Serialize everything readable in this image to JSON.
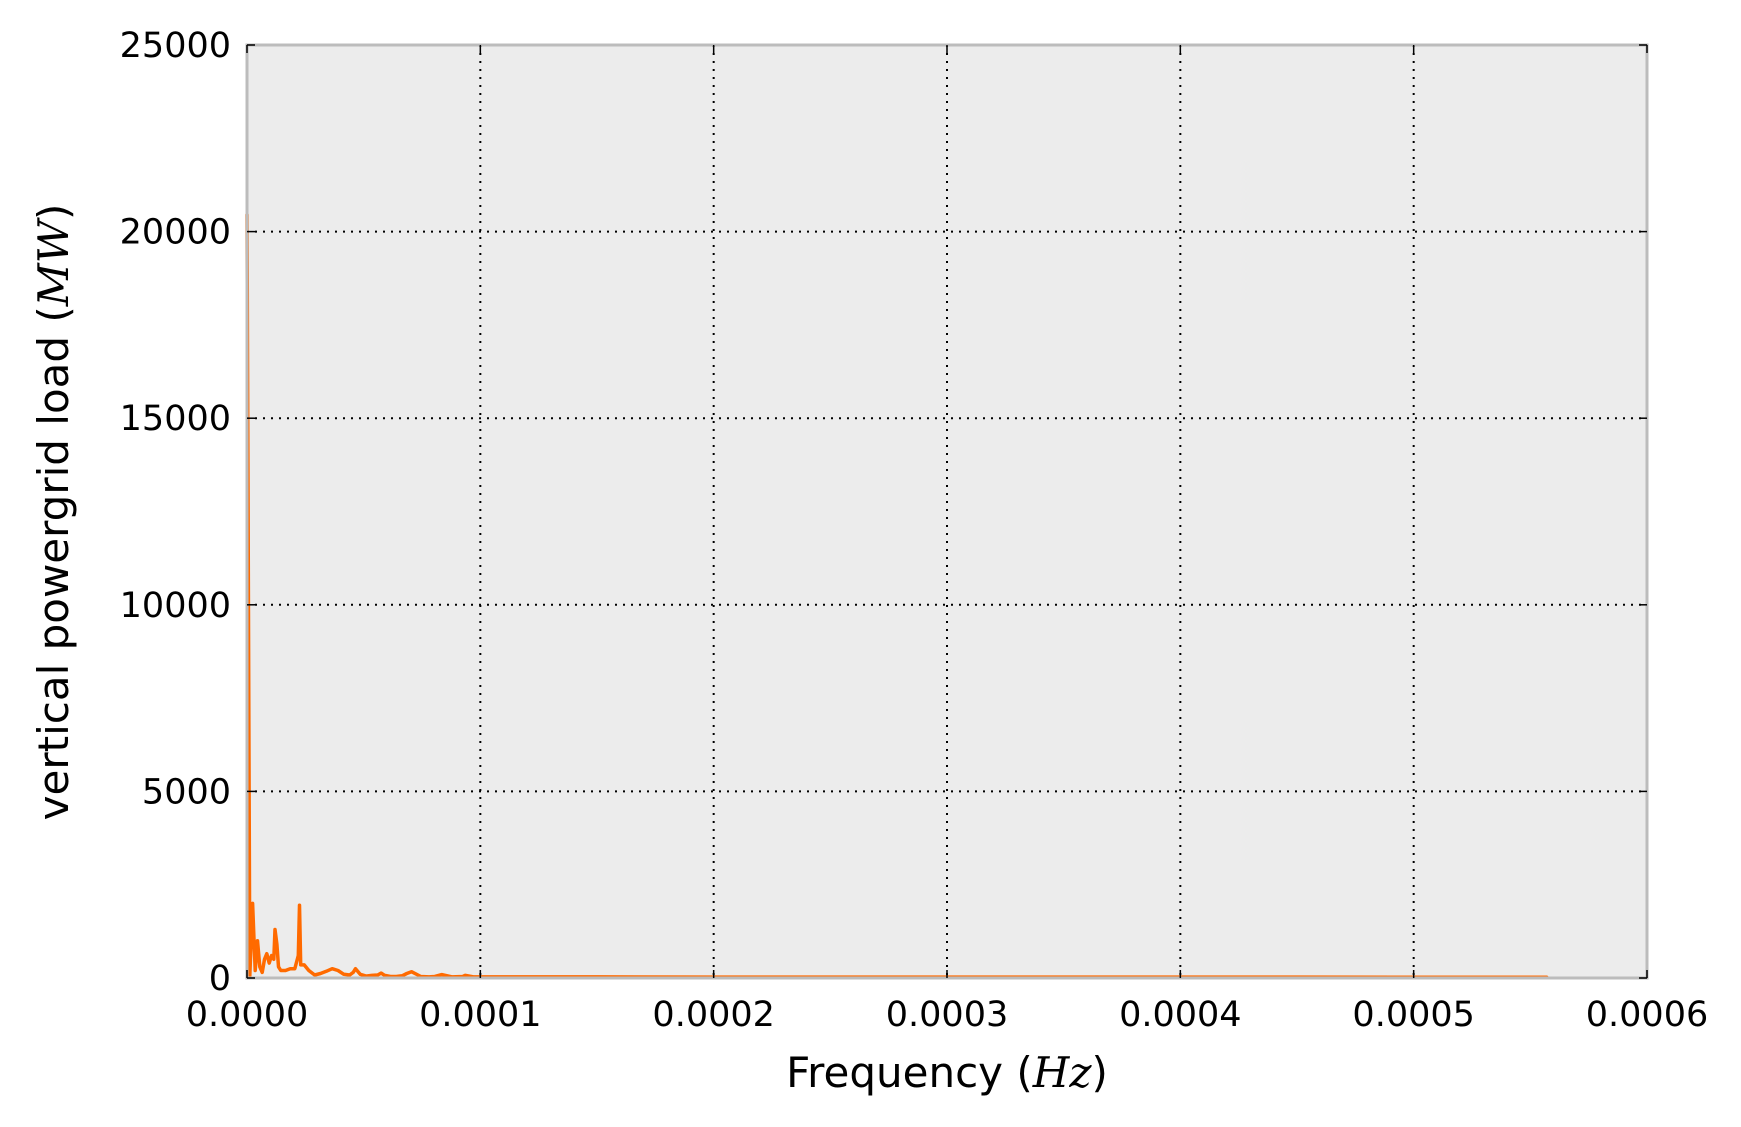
{
  "chart_data": {
    "type": "line",
    "title": "",
    "xlabel": {
      "prefix": "Frequency (",
      "unit": "Hz",
      "suffix": ")"
    },
    "ylabel": {
      "prefix": "vertical powergrid load (",
      "unit": "MW",
      "suffix": ")"
    },
    "xlim": [
      0,
      0.0006
    ],
    "ylim": [
      0,
      25000
    ],
    "xticks": [
      0,
      0.0001,
      0.0002,
      0.0003,
      0.0004,
      0.0005,
      0.0006
    ],
    "xtick_labels": [
      "0.0000",
      "0.0001",
      "0.0002",
      "0.0003",
      "0.0004",
      "0.0005",
      "0.0006"
    ],
    "yticks": [
      0,
      5000,
      10000,
      15000,
      20000,
      25000
    ],
    "ytick_labels": [
      "0",
      "5000",
      "10000",
      "15000",
      "20000",
      "25000"
    ],
    "grid": true,
    "legend": "none",
    "colors": {
      "series": "#ff6a00",
      "axes_background": "#ececec",
      "axes_border": "#bcbcbc",
      "grid": "#000000"
    },
    "series": [
      {
        "name": "",
        "x": [
          0.0,
          1.2e-06,
          2.4e-06,
          3.5e-06,
          4.5e-06,
          5.5e-06,
          6.5e-06,
          7.5e-06,
          8.5e-06,
          9.5e-06,
          1.05e-05,
          1.15e-05,
          1.2e-05,
          1.28e-05,
          1.35e-05,
          1.45e-05,
          1.65e-05,
          1.85e-05,
          2.05e-05,
          2.2e-05,
          2.25e-05,
          2.3e-05,
          2.45e-05,
          2.65e-05,
          2.9e-05,
          3.15e-05,
          3.4e-05,
          3.65e-05,
          3.9e-05,
          4.15e-05,
          4.4e-05,
          4.55e-05,
          4.65e-05,
          4.85e-05,
          5.1e-05,
          5.35e-05,
          5.6e-05,
          5.75e-05,
          5.9e-05,
          6.15e-05,
          6.4e-05,
          6.65e-05,
          6.85e-05,
          7.05e-05,
          7.45e-05,
          7.8e-05,
          8.05e-05,
          8.35e-05,
          8.8e-05,
          9.25e-05,
          9.35e-05,
          9.7e-05,
          0.0001,
          0.00012,
          0.00015,
          0.0002,
          0.00025,
          0.0003,
          0.00035,
          0.0004,
          0.00045,
          0.0005,
          0.000557
        ],
        "y": [
          20450,
          60,
          2000,
          200,
          1000,
          300,
          150,
          500,
          650,
          400,
          600,
          500,
          1300,
          900,
          300,
          200,
          200,
          250,
          250,
          600,
          1950,
          350,
          350,
          200,
          80,
          120,
          180,
          250,
          200,
          100,
          80,
          150,
          250,
          100,
          50,
          70,
          80,
          130,
          70,
          40,
          40,
          60,
          120,
          170,
          40,
          30,
          40,
          90,
          30,
          40,
          70,
          30,
          30,
          30,
          30,
          25,
          25,
          25,
          25,
          25,
          25,
          20,
          20
        ]
      }
    ]
  }
}
